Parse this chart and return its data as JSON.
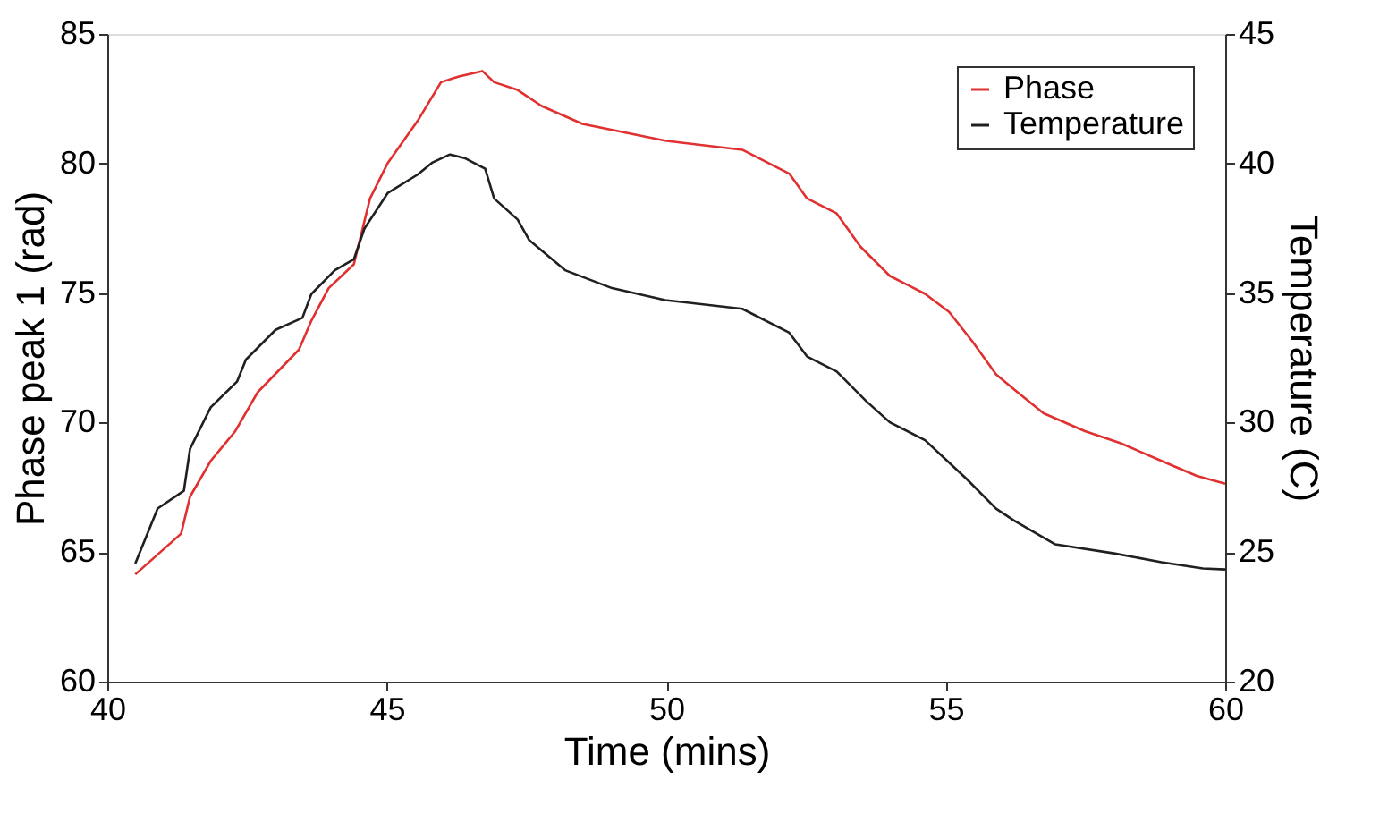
{
  "chart_data": {
    "type": "line",
    "xlabel": "Time (mins)",
    "ylabel": "Phase peak 1 (rad)",
    "y2label": "Temperature (C)",
    "xlim": [
      40,
      60
    ],
    "xticks": [
      40,
      45,
      50,
      55,
      60
    ],
    "ylim": [
      60,
      85
    ],
    "yticks": [
      60,
      65,
      70,
      75,
      80,
      85
    ],
    "y2lim": [
      20,
      45
    ],
    "y2ticks": [
      20,
      25,
      30,
      35,
      40,
      45
    ],
    "grid": false,
    "legend": "top right",
    "line_style": "solid",
    "marker": "none",
    "series": [
      {
        "name": "Phase",
        "color": "#e03030",
        "x": [
          40.5,
          41.32,
          41.48,
          41.85,
          42.29,
          42.69,
          43.43,
          43.65,
          43.96,
          44.41,
          44.7,
          45.02,
          45.55,
          45.97,
          46.29,
          46.71,
          46.92,
          47.34,
          47.77,
          48.5,
          49.98,
          51.36,
          52.2,
          52.52,
          53.05,
          53.47,
          54.0,
          54.63,
          55.06,
          55.48,
          55.9,
          56.22,
          56.75,
          57.49,
          58.12,
          58.86,
          59.49,
          60.0
        ],
        "values": [
          64.14,
          65.71,
          67.14,
          68.52,
          69.67,
          71.17,
          72.82,
          73.93,
          75.19,
          76.11,
          78.65,
          80.03,
          81.64,
          83.14,
          83.36,
          83.57,
          83.14,
          82.84,
          82.22,
          81.53,
          80.88,
          80.53,
          79.61,
          78.65,
          78.07,
          76.8,
          75.66,
          74.97,
          74.27,
          73.12,
          71.86,
          71.28,
          70.36,
          69.67,
          69.21,
          68.52,
          67.94,
          67.64
        ]
      },
      {
        "name": "Temperature",
        "color": "#202020",
        "axis": "y2",
        "x": [
          40.5,
          40.9,
          41.37,
          41.48,
          41.85,
          42.32,
          42.48,
          43.01,
          43.49,
          43.65,
          44.07,
          44.41,
          44.6,
          45.02,
          45.55,
          45.81,
          46.13,
          46.39,
          46.76,
          46.92,
          47.34,
          47.55,
          48.19,
          49.03,
          49.98,
          51.36,
          52.2,
          52.52,
          53.05,
          53.58,
          54.0,
          54.63,
          55.37,
          55.9,
          56.22,
          56.96,
          58.01,
          58.86,
          59.6,
          60.0
        ],
        "values": [
          24.56,
          26.68,
          27.37,
          28.98,
          30.59,
          31.58,
          32.43,
          33.58,
          34.04,
          34.96,
          35.88,
          36.3,
          37.49,
          38.87,
          39.57,
          40.03,
          40.35,
          40.21,
          39.8,
          38.65,
          37.84,
          37.04,
          35.88,
          35.19,
          34.73,
          34.39,
          33.47,
          32.55,
          31.97,
          30.82,
          30.01,
          29.32,
          27.83,
          26.68,
          26.22,
          25.3,
          24.95,
          24.61,
          24.37,
          24.33
        ]
      }
    ]
  }
}
